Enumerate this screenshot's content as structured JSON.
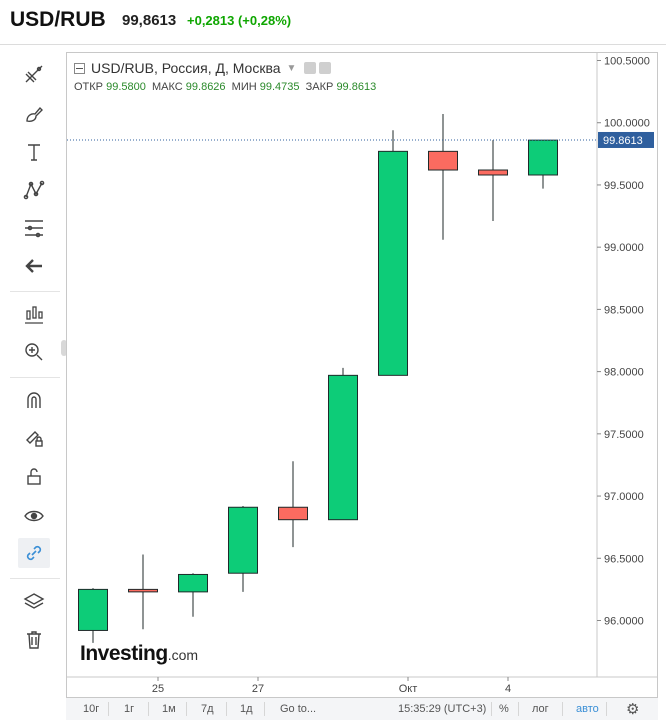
{
  "header": {
    "symbol": "USD/RUB",
    "price": "99,8613",
    "change": "+0,2813 (+0,28%)"
  },
  "legend": {
    "title": "USD/RUB, Россия, Д, Москва",
    "open_label": "ОТКР",
    "open": "99.5800",
    "high_label": "МАКС",
    "high": "99.8626",
    "low_label": "МИН",
    "low": "99.4735",
    "close_label": "ЗАКР",
    "close": "99.8613"
  },
  "logo": {
    "brand": "Investing",
    "domain": ".com"
  },
  "bottom_bar": {
    "ranges": [
      "10г",
      "1г",
      "1м",
      "7д",
      "1д"
    ],
    "goto": "Go to...",
    "time": "15:35:29 (UTC+3)",
    "percent": "%",
    "log": "лог",
    "auto": "авто"
  },
  "colors": {
    "up": "#0dcc78",
    "down": "#fb6b60",
    "change": "#0ea600"
  },
  "icons": [
    "crosshair-icon",
    "brush-icon",
    "text-icon",
    "pattern-icon",
    "fib-icon",
    "back-arrow-icon",
    "indicators-icon",
    "zoom-icon",
    "magnet-icon",
    "lock-drawing-icon",
    "unlock-icon",
    "eye-icon",
    "link-icon",
    "layers-icon",
    "trash-icon",
    "gear-icon"
  ],
  "chart_data": {
    "type": "candlestick",
    "y_axis": {
      "range": [
        95.65,
        100.6
      ],
      "tick_labels": [
        "96.0000",
        "96.5000",
        "97.0000",
        "97.5000",
        "98.0000",
        "98.5000",
        "99.0000",
        "99.5000",
        "100.0000",
        "100.5000"
      ],
      "tick_values": [
        96.0,
        96.5,
        97.0,
        97.5,
        98.0,
        98.5,
        99.0,
        99.5,
        100.0,
        100.5
      ]
    },
    "x_axis": {
      "tick_labels": [
        "25",
        "27",
        "Окт",
        "4"
      ],
      "tick_positions": [
        1.3,
        3.3,
        6.3,
        8.3
      ]
    },
    "current_price": 99.8613,
    "current_price_label": "99.8613",
    "candles": [
      {
        "open": 95.92,
        "high": 96.26,
        "low": 95.82,
        "close": 96.25
      },
      {
        "open": 96.25,
        "high": 96.53,
        "low": 95.93,
        "close": 96.23
      },
      {
        "open": 96.23,
        "high": 96.38,
        "low": 96.03,
        "close": 96.37
      },
      {
        "open": 96.38,
        "high": 96.92,
        "low": 96.23,
        "close": 96.91
      },
      {
        "open": 96.91,
        "high": 97.28,
        "low": 96.59,
        "close": 96.81
      },
      {
        "open": 96.81,
        "high": 98.03,
        "low": 96.81,
        "close": 97.97
      },
      {
        "open": 97.97,
        "high": 99.94,
        "low": 97.97,
        "close": 99.77
      },
      {
        "open": 99.77,
        "high": 100.07,
        "low": 99.06,
        "close": 99.62
      },
      {
        "open": 99.62,
        "high": 99.86,
        "low": 99.21,
        "close": 99.58
      },
      {
        "open": 99.58,
        "high": 99.86,
        "low": 99.47,
        "close": 99.86
      }
    ]
  }
}
